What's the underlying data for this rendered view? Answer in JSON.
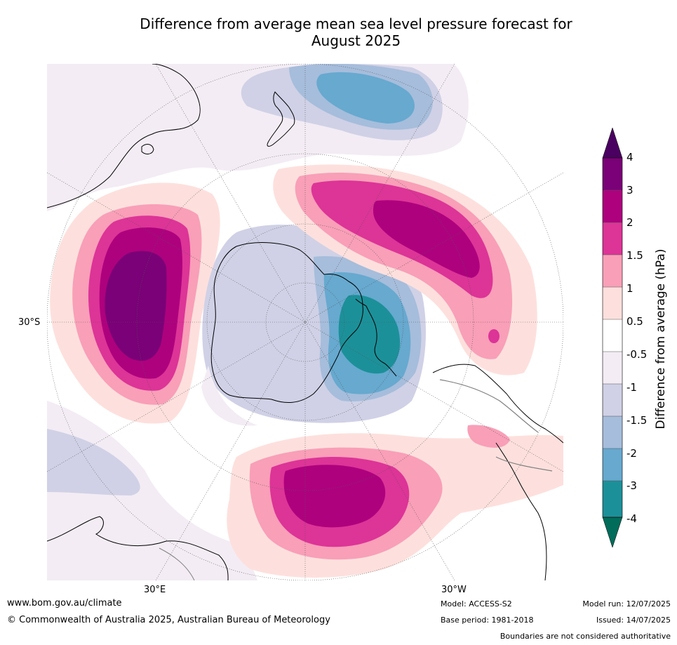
{
  "title_line1": "Difference from average mean sea level pressure forecast for",
  "title_line2": "August 2025",
  "map": {
    "projection": "south-polar-stereographic",
    "lat_label": "30°S",
    "lon_labels": [
      "30°E",
      "30°W"
    ],
    "ocean_color": "#ffffff",
    "coastline_color": "#000000",
    "boundary_color": "#808080"
  },
  "colorbar": {
    "title": "Difference from average (hPa)",
    "tick_labels": [
      "4",
      "3",
      "2",
      "1.5",
      "1",
      "0.5",
      "-0.5",
      "-1",
      "-1.5",
      "-2",
      "-3",
      "-4"
    ],
    "colors": {
      "above_4": "#4a0060",
      "3_to_4": "#7a0177",
      "2_to_3": "#ae017e",
      "1.5_to_2": "#dd3497",
      "1_to_1.5": "#f99fb8",
      "0.5_to_1": "#fde0dd",
      "-0.5_to_0.5": "#ffffff",
      "-1_to_-0.5": "#f3ecf4",
      "-1.5_to_-1": "#d0d1e6",
      "-2_to_-1.5": "#a6bddb",
      "-3_to_-2": "#67a9cf",
      "-4_to_-3": "#1c9099",
      "below_-4": "#016c59"
    }
  },
  "footer": {
    "url": "www.bom.gov.au/climate",
    "copyright": "© Commonwealth of Australia 2025, Australian Bureau of Meteorology",
    "model": "Model: ACCESS-S2",
    "base_period": "Base period: 1981-2018",
    "model_run": "Model run: 12/07/2025",
    "issued": "Issued: 14/07/2025",
    "disclaimer": "Boundaries are not considered authoritative"
  }
}
